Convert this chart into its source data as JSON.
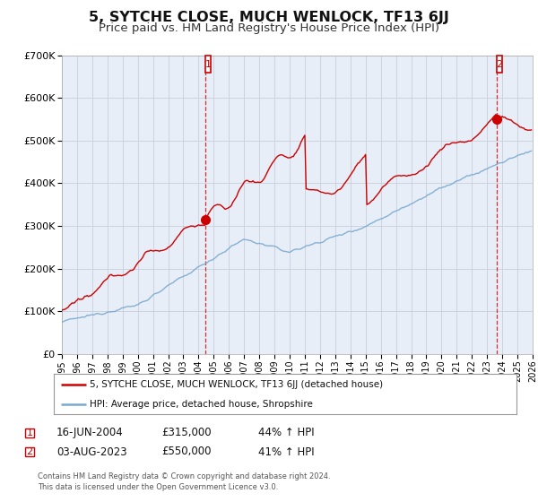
{
  "title": "5, SYTCHE CLOSE, MUCH WENLOCK, TF13 6JJ",
  "subtitle": "Price paid vs. HM Land Registry's House Price Index (HPI)",
  "title_fontsize": 11.5,
  "subtitle_fontsize": 9.5,
  "background_color": "#ffffff",
  "plot_bg_color": "#e8eef7",
  "grid_color": "#c8d0dc",
  "house_color": "#cc0000",
  "hpi_color": "#7aaad0",
  "sale1_label": "1",
  "sale2_label": "2",
  "sale1_date": "16-JUN-2004",
  "sale1_price": "£315,000",
  "sale1_hpi": "44% ↑ HPI",
  "sale2_date": "03-AUG-2023",
  "sale2_price": "£550,000",
  "sale2_hpi": "41% ↑ HPI",
  "legend_house": "5, SYTCHE CLOSE, MUCH WENLOCK, TF13 6JJ (detached house)",
  "legend_hpi": "HPI: Average price, detached house, Shropshire",
  "footer1": "Contains HM Land Registry data © Crown copyright and database right 2024.",
  "footer2": "This data is licensed under the Open Government Licence v3.0.",
  "ylim_max": 700000,
  "ylim_min": 0,
  "xmin": 1995,
  "xmax": 2026
}
